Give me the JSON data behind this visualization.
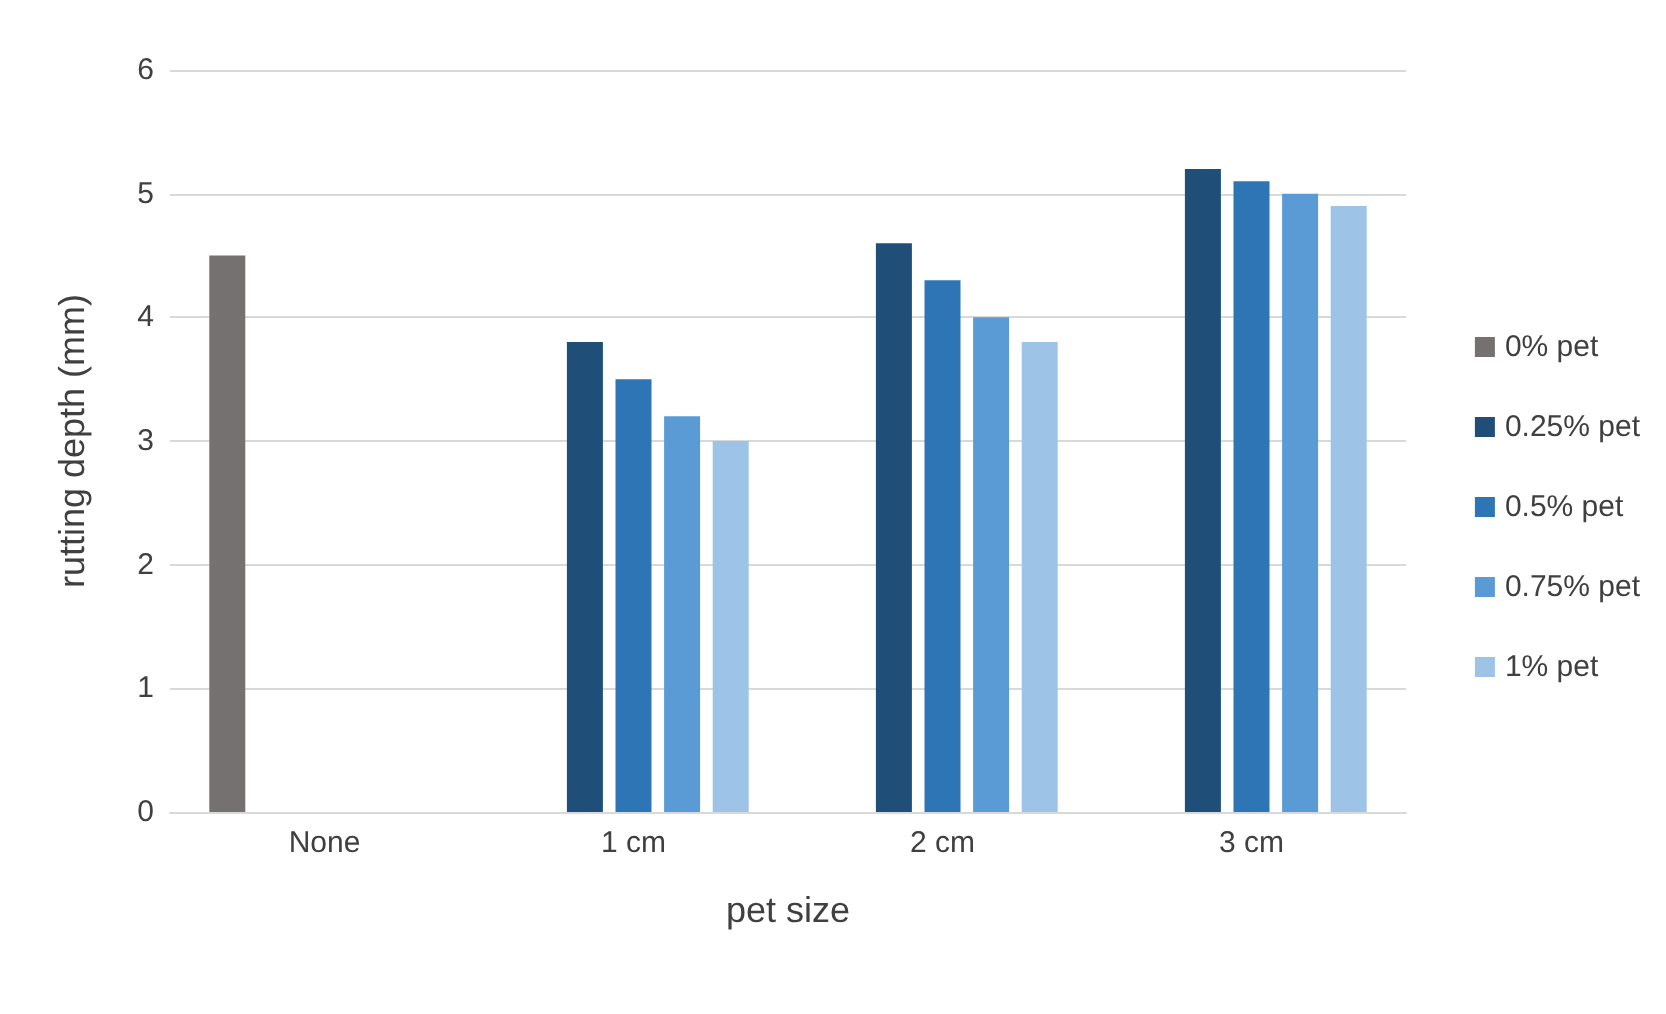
{
  "chart_data": {
    "type": "bar",
    "xlabel": "pet size",
    "ylabel": "rutting depth (mm)",
    "categories": [
      "None",
      "1 cm",
      "2 cm",
      "3 cm"
    ],
    "series": [
      {
        "name": "0% pet",
        "color": "#767171",
        "values": [
          4.5,
          null,
          null,
          null
        ]
      },
      {
        "name": "0.25% pet",
        "color": "#1f4e79",
        "values": [
          null,
          3.8,
          4.6,
          5.2
        ]
      },
      {
        "name": "0.5% pet",
        "color": "#2e75b6",
        "values": [
          null,
          3.5,
          4.3,
          5.1
        ]
      },
      {
        "name": "0.75% pet",
        "color": "#5b9bd5",
        "values": [
          null,
          3.2,
          4.0,
          5.0
        ]
      },
      {
        "name": "1% pet",
        "color": "#9dc3e6",
        "values": [
          null,
          3.0,
          3.8,
          4.9
        ]
      }
    ],
    "ylim": [
      0,
      6
    ],
    "yticks": [
      0,
      1,
      2,
      3,
      4,
      5,
      6
    ],
    "grid": "y",
    "legend": "right"
  }
}
